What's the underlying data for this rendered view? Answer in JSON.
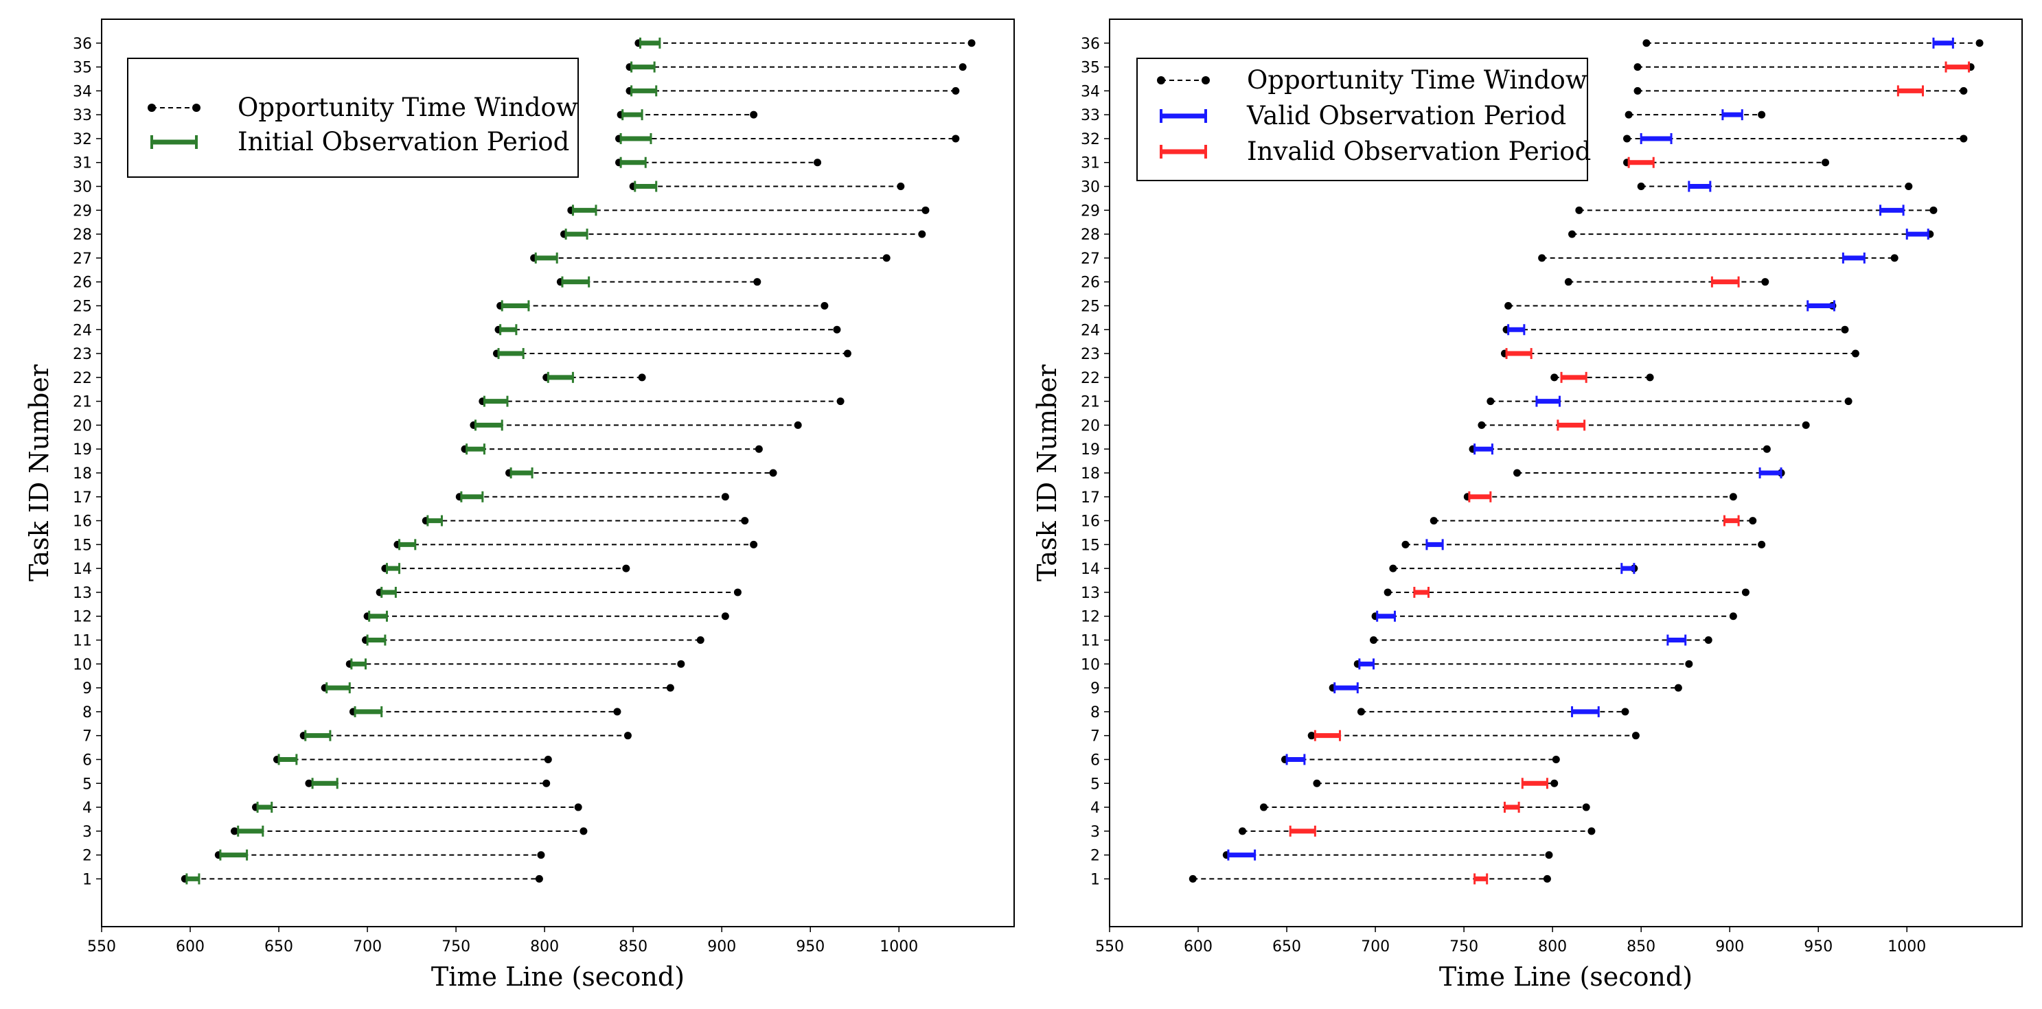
{
  "chart_data": [
    {
      "type": "interval",
      "xlabel": "Time Line (second)",
      "ylabel": "Task ID Number",
      "xlim": [
        550,
        1065
      ],
      "ylim": [
        -1,
        37
      ],
      "xticks": [
        550,
        600,
        650,
        700,
        750,
        800,
        850,
        900,
        950,
        1000
      ],
      "yticks": [
        1,
        2,
        3,
        4,
        5,
        6,
        7,
        8,
        9,
        10,
        11,
        12,
        13,
        14,
        15,
        16,
        17,
        18,
        19,
        20,
        21,
        22,
        23,
        24,
        25,
        26,
        27,
        28,
        29,
        30,
        31,
        32,
        33,
        34,
        35,
        36
      ],
      "legend": [
        {
          "label": "Opportunity Time Window",
          "style": "window"
        },
        {
          "label": "Initial Observation Period",
          "style": "green"
        }
      ],
      "tasks": [
        {
          "id": 1,
          "window": [
            597,
            797
          ],
          "obs": [
            598,
            605
          ],
          "status": "initial"
        },
        {
          "id": 2,
          "window": [
            616,
            798
          ],
          "obs": [
            617,
            632
          ],
          "status": "initial"
        },
        {
          "id": 3,
          "window": [
            625,
            822
          ],
          "obs": [
            627,
            641
          ],
          "status": "initial"
        },
        {
          "id": 4,
          "window": [
            637,
            819
          ],
          "obs": [
            638,
            646
          ],
          "status": "initial"
        },
        {
          "id": 5,
          "window": [
            667,
            801
          ],
          "obs": [
            669,
            683
          ],
          "status": "initial"
        },
        {
          "id": 6,
          "window": [
            649,
            802
          ],
          "obs": [
            650,
            660
          ],
          "status": "initial"
        },
        {
          "id": 7,
          "window": [
            664,
            847
          ],
          "obs": [
            665,
            679
          ],
          "status": "initial"
        },
        {
          "id": 8,
          "window": [
            692,
            841
          ],
          "obs": [
            693,
            708
          ],
          "status": "initial"
        },
        {
          "id": 9,
          "window": [
            676,
            871
          ],
          "obs": [
            677,
            690
          ],
          "status": "initial"
        },
        {
          "id": 10,
          "window": [
            690,
            877
          ],
          "obs": [
            691,
            699
          ],
          "status": "initial"
        },
        {
          "id": 11,
          "window": [
            699,
            888
          ],
          "obs": [
            700,
            710
          ],
          "status": "initial"
        },
        {
          "id": 12,
          "window": [
            700,
            902
          ],
          "obs": [
            701,
            711
          ],
          "status": "initial"
        },
        {
          "id": 13,
          "window": [
            707,
            909
          ],
          "obs": [
            708,
            716
          ],
          "status": "initial"
        },
        {
          "id": 14,
          "window": [
            710,
            846
          ],
          "obs": [
            711,
            718
          ],
          "status": "initial"
        },
        {
          "id": 15,
          "window": [
            717,
            918
          ],
          "obs": [
            718,
            727
          ],
          "status": "initial"
        },
        {
          "id": 16,
          "window": [
            733,
            913
          ],
          "obs": [
            734,
            742
          ],
          "status": "initial"
        },
        {
          "id": 17,
          "window": [
            752,
            902
          ],
          "obs": [
            753,
            765
          ],
          "status": "initial"
        },
        {
          "id": 18,
          "window": [
            780,
            929
          ],
          "obs": [
            781,
            793
          ],
          "status": "initial"
        },
        {
          "id": 19,
          "window": [
            755,
            921
          ],
          "obs": [
            756,
            766
          ],
          "status": "initial"
        },
        {
          "id": 20,
          "window": [
            760,
            943
          ],
          "obs": [
            761,
            776
          ],
          "status": "initial"
        },
        {
          "id": 21,
          "window": [
            765,
            967
          ],
          "obs": [
            766,
            779
          ],
          "status": "initial"
        },
        {
          "id": 22,
          "window": [
            801,
            855
          ],
          "obs": [
            802,
            816
          ],
          "status": "initial"
        },
        {
          "id": 23,
          "window": [
            773,
            971
          ],
          "obs": [
            774,
            788
          ],
          "status": "initial"
        },
        {
          "id": 24,
          "window": [
            774,
            965
          ],
          "obs": [
            775,
            784
          ],
          "status": "initial"
        },
        {
          "id": 25,
          "window": [
            775,
            958
          ],
          "obs": [
            776,
            791
          ],
          "status": "initial"
        },
        {
          "id": 26,
          "window": [
            809,
            920
          ],
          "obs": [
            810,
            825
          ],
          "status": "initial"
        },
        {
          "id": 27,
          "window": [
            794,
            993
          ],
          "obs": [
            795,
            807
          ],
          "status": "initial"
        },
        {
          "id": 28,
          "window": [
            811,
            1013
          ],
          "obs": [
            812,
            824
          ],
          "status": "initial"
        },
        {
          "id": 29,
          "window": [
            815,
            1015
          ],
          "obs": [
            816,
            829
          ],
          "status": "initial"
        },
        {
          "id": 30,
          "window": [
            850,
            1001
          ],
          "obs": [
            851,
            863
          ],
          "status": "initial"
        },
        {
          "id": 31,
          "window": [
            842,
            954
          ],
          "obs": [
            843,
            857
          ],
          "status": "initial"
        },
        {
          "id": 32,
          "window": [
            842,
            1032
          ],
          "obs": [
            843,
            860
          ],
          "status": "initial"
        },
        {
          "id": 33,
          "window": [
            843,
            918
          ],
          "obs": [
            844,
            855
          ],
          "status": "initial"
        },
        {
          "id": 34,
          "window": [
            848,
            1032
          ],
          "obs": [
            849,
            863
          ],
          "status": "initial"
        },
        {
          "id": 35,
          "window": [
            848,
            1036
          ],
          "obs": [
            849,
            862
          ],
          "status": "initial"
        },
        {
          "id": 36,
          "window": [
            853,
            1041
          ],
          "obs": [
            854,
            865
          ],
          "status": "initial"
        }
      ]
    },
    {
      "type": "interval",
      "xlabel": "Time Line (second)",
      "ylabel": "Task ID Number",
      "xlim": [
        550,
        1065
      ],
      "ylim": [
        -1,
        37
      ],
      "xticks": [
        550,
        600,
        650,
        700,
        750,
        800,
        850,
        900,
        950,
        1000
      ],
      "yticks": [
        1,
        2,
        3,
        4,
        5,
        6,
        7,
        8,
        9,
        10,
        11,
        12,
        13,
        14,
        15,
        16,
        17,
        18,
        19,
        20,
        21,
        22,
        23,
        24,
        25,
        26,
        27,
        28,
        29,
        30,
        31,
        32,
        33,
        34,
        35,
        36
      ],
      "legend": [
        {
          "label": "Opportunity Time Window",
          "style": "window"
        },
        {
          "label": "Valid Observation Period",
          "style": "blue"
        },
        {
          "label": "Invalid Observation Period",
          "style": "red"
        }
      ],
      "tasks": [
        {
          "id": 1,
          "window": [
            597,
            797
          ],
          "obs": [
            756,
            763
          ],
          "status": "invalid"
        },
        {
          "id": 2,
          "window": [
            616,
            798
          ],
          "obs": [
            617,
            632
          ],
          "status": "valid"
        },
        {
          "id": 3,
          "window": [
            625,
            822
          ],
          "obs": [
            652,
            666
          ],
          "status": "invalid"
        },
        {
          "id": 4,
          "window": [
            637,
            819
          ],
          "obs": [
            773,
            781
          ],
          "status": "invalid"
        },
        {
          "id": 5,
          "window": [
            667,
            801
          ],
          "obs": [
            783,
            797
          ],
          "status": "invalid"
        },
        {
          "id": 6,
          "window": [
            649,
            802
          ],
          "obs": [
            650,
            660
          ],
          "status": "valid"
        },
        {
          "id": 7,
          "window": [
            664,
            847
          ],
          "obs": [
            666,
            680
          ],
          "status": "invalid"
        },
        {
          "id": 8,
          "window": [
            692,
            841
          ],
          "obs": [
            811,
            826
          ],
          "status": "valid"
        },
        {
          "id": 9,
          "window": [
            676,
            871
          ],
          "obs": [
            677,
            690
          ],
          "status": "valid"
        },
        {
          "id": 10,
          "window": [
            690,
            877
          ],
          "obs": [
            691,
            699
          ],
          "status": "valid"
        },
        {
          "id": 11,
          "window": [
            699,
            888
          ],
          "obs": [
            865,
            875
          ],
          "status": "valid"
        },
        {
          "id": 12,
          "window": [
            700,
            902
          ],
          "obs": [
            701,
            711
          ],
          "status": "valid"
        },
        {
          "id": 13,
          "window": [
            707,
            909
          ],
          "obs": [
            722,
            730
          ],
          "status": "invalid"
        },
        {
          "id": 14,
          "window": [
            710,
            846
          ],
          "obs": [
            839,
            846
          ],
          "status": "valid"
        },
        {
          "id": 15,
          "window": [
            717,
            918
          ],
          "obs": [
            729,
            738
          ],
          "status": "valid"
        },
        {
          "id": 16,
          "window": [
            733,
            913
          ],
          "obs": [
            897,
            905
          ],
          "status": "invalid"
        },
        {
          "id": 17,
          "window": [
            752,
            902
          ],
          "obs": [
            753,
            765
          ],
          "status": "invalid"
        },
        {
          "id": 18,
          "window": [
            780,
            929
          ],
          "obs": [
            917,
            929
          ],
          "status": "valid"
        },
        {
          "id": 19,
          "window": [
            755,
            921
          ],
          "obs": [
            756,
            766
          ],
          "status": "valid"
        },
        {
          "id": 20,
          "window": [
            760,
            943
          ],
          "obs": [
            803,
            818
          ],
          "status": "invalid"
        },
        {
          "id": 21,
          "window": [
            765,
            967
          ],
          "obs": [
            791,
            804
          ],
          "status": "valid"
        },
        {
          "id": 22,
          "window": [
            801,
            855
          ],
          "obs": [
            805,
            819
          ],
          "status": "invalid"
        },
        {
          "id": 23,
          "window": [
            773,
            971
          ],
          "obs": [
            774,
            788
          ],
          "status": "invalid"
        },
        {
          "id": 24,
          "window": [
            774,
            965
          ],
          "obs": [
            775,
            784
          ],
          "status": "valid"
        },
        {
          "id": 25,
          "window": [
            775,
            958
          ],
          "obs": [
            944,
            959
          ],
          "status": "valid"
        },
        {
          "id": 26,
          "window": [
            809,
            920
          ],
          "obs": [
            890,
            905
          ],
          "status": "invalid"
        },
        {
          "id": 27,
          "window": [
            794,
            993
          ],
          "obs": [
            964,
            976
          ],
          "status": "valid"
        },
        {
          "id": 28,
          "window": [
            811,
            1013
          ],
          "obs": [
            1000,
            1012
          ],
          "status": "valid"
        },
        {
          "id": 29,
          "window": [
            815,
            1015
          ],
          "obs": [
            985,
            998
          ],
          "status": "valid"
        },
        {
          "id": 30,
          "window": [
            850,
            1001
          ],
          "obs": [
            877,
            889
          ],
          "status": "valid"
        },
        {
          "id": 31,
          "window": [
            842,
            954
          ],
          "obs": [
            843,
            857
          ],
          "status": "invalid"
        },
        {
          "id": 32,
          "window": [
            842,
            1032
          ],
          "obs": [
            850,
            867
          ],
          "status": "valid"
        },
        {
          "id": 33,
          "window": [
            843,
            918
          ],
          "obs": [
            896,
            907
          ],
          "status": "valid"
        },
        {
          "id": 34,
          "window": [
            848,
            1032
          ],
          "obs": [
            995,
            1009
          ],
          "status": "invalid"
        },
        {
          "id": 35,
          "window": [
            848,
            1036
          ],
          "obs": [
            1022,
            1035
          ],
          "status": "invalid"
        },
        {
          "id": 36,
          "window": [
            853,
            1041
          ],
          "obs": [
            1015,
            1026
          ],
          "status": "valid"
        }
      ]
    }
  ],
  "colors": {
    "window": "#000000",
    "initial": "#2e7d2e",
    "valid": "#1a1aff",
    "invalid": "#ff2a2a",
    "frame": "#000000"
  }
}
